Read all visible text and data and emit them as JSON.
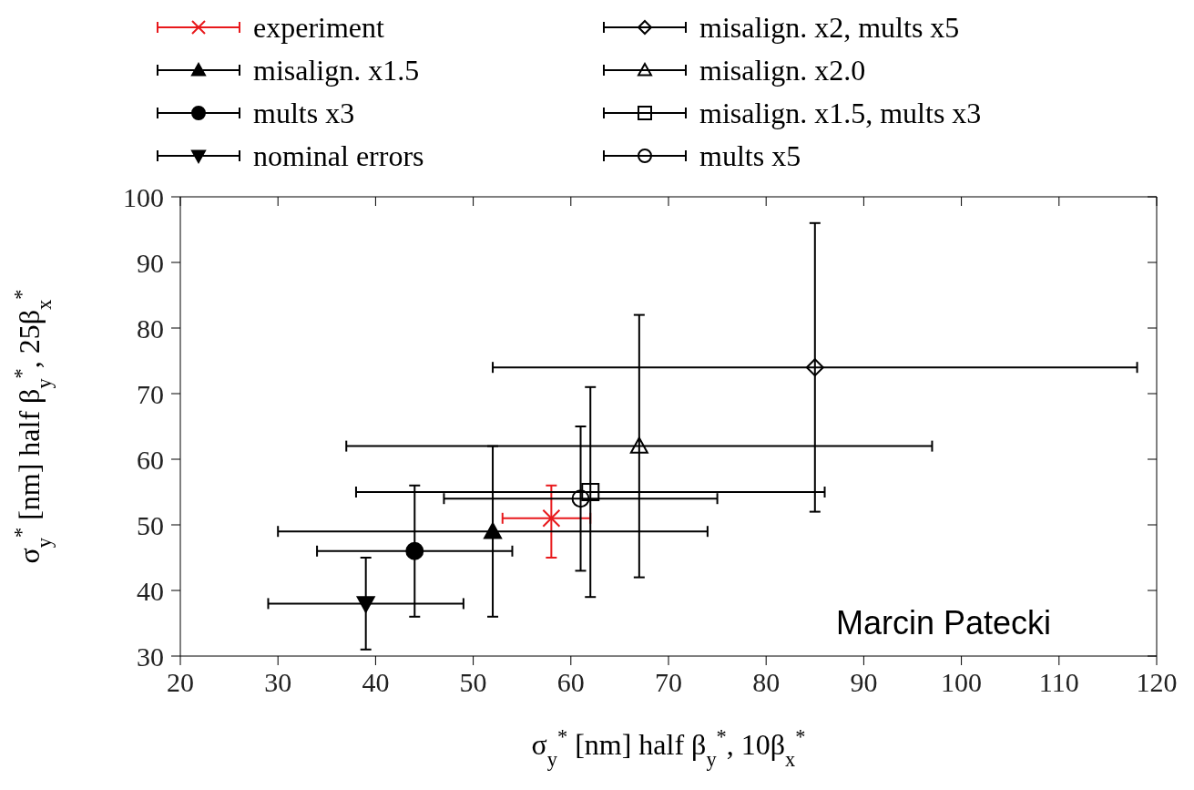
{
  "chart_data": {
    "type": "scatter",
    "xlabel": "σ$_{y}$$^{*}$ [nm] half β$_{y}$$^{*}$, 10β$_{x}$$^{*}$",
    "ylabel": "σ$_{y}$$^{*}$ [nm] half β$_{y}$$^{*}$, 25β$_{x}$$^{*}$",
    "xlim": [
      20,
      120
    ],
    "xticks": [
      20,
      30,
      40,
      50,
      60,
      70,
      80,
      90,
      100,
      110,
      120
    ],
    "ylim": [
      30,
      100
    ],
    "yticks": [
      30,
      40,
      50,
      60,
      70,
      80,
      90,
      100
    ],
    "grid": false,
    "legend": "top",
    "annotations": [
      "Marcin Patecki"
    ],
    "series": [
      {
        "name": "experiment",
        "color": "#e8191c",
        "marker": "cross",
        "x": [
          58
        ],
        "values": [
          51
        ],
        "xerrors": [
          [
            53,
            62
          ]
        ],
        "errors": [
          [
            45,
            56
          ]
        ]
      },
      {
        "name": "misalign. x1.5",
        "color": "#000000",
        "marker": "triangle",
        "x": [
          52
        ],
        "values": [
          49
        ],
        "xerrors": [
          [
            30,
            74
          ]
        ],
        "errors": [
          [
            36,
            62
          ]
        ]
      },
      {
        "name": "mults x3",
        "color": "#000000",
        "marker": "circle",
        "x": [
          44
        ],
        "values": [
          46
        ],
        "xerrors": [
          [
            34,
            54
          ]
        ],
        "errors": [
          [
            36,
            56
          ]
        ]
      },
      {
        "name": "nominal errors",
        "color": "#000000",
        "marker": "triangle-down",
        "x": [
          39
        ],
        "values": [
          38
        ],
        "xerrors": [
          [
            29,
            49
          ]
        ],
        "errors": [
          [
            31,
            45
          ]
        ]
      },
      {
        "name": "misalign. x2, mults x5",
        "color": "#000000",
        "marker": "diamond-open",
        "x": [
          85
        ],
        "values": [
          74
        ],
        "xerrors": [
          [
            52,
            118
          ]
        ],
        "errors": [
          [
            52,
            96
          ]
        ]
      },
      {
        "name": "misalign. x2.0",
        "color": "#000000",
        "marker": "triangle-open",
        "x": [
          67
        ],
        "values": [
          62
        ],
        "xerrors": [
          [
            37,
            97
          ]
        ],
        "errors": [
          [
            42,
            82
          ]
        ]
      },
      {
        "name": "misalign. x1.5, mults x3",
        "color": "#000000",
        "marker": "square-open",
        "x": [
          62
        ],
        "values": [
          55
        ],
        "xerrors": [
          [
            38,
            86
          ]
        ],
        "errors": [
          [
            39,
            71
          ]
        ]
      },
      {
        "name": "mults x5",
        "color": "#000000",
        "marker": "circle-open",
        "x": [
          61
        ],
        "values": [
          54
        ],
        "xerrors": [
          [
            47,
            75
          ]
        ],
        "errors": [
          [
            43,
            65
          ]
        ]
      }
    ]
  }
}
